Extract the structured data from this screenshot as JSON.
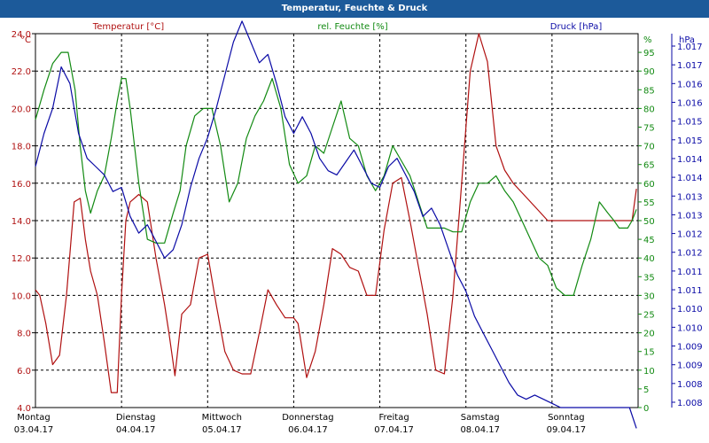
{
  "window": {
    "title": "Temperatur, Feuchte & Druck"
  },
  "chart_data": {
    "type": "line",
    "colors": {
      "temperature": "#b01010",
      "humidity": "#128a12",
      "pressure": "#0a0aa6",
      "grid": "#000000"
    },
    "x_ticks": [
      {
        "day": "Montag",
        "date": "03.04.17"
      },
      {
        "day": "Dienstag",
        "date": "04.04.17"
      },
      {
        "day": "Mittwoch",
        "date": "05.04.17"
      },
      {
        "day": "Donnerstag",
        "date": "06.04.17"
      },
      {
        "day": "Freitag",
        "date": "07.04.17"
      },
      {
        "day": "Samstag",
        "date": "08.04.17"
      },
      {
        "day": "Sonntag",
        "date": "09.04.17"
      }
    ],
    "axes": {
      "left": {
        "unit": "°C",
        "ylim": [
          4,
          24
        ],
        "ticks": [
          "24.0",
          "22.0",
          "20.0",
          "18.0",
          "16.0",
          "14.0",
          "12.0",
          "10.0",
          "8.0",
          "6.0",
          "4.0"
        ]
      },
      "middle": {
        "unit": "%",
        "ylim": [
          0,
          100
        ],
        "ticks": [
          "95",
          "90",
          "85",
          "80",
          "75",
          "70",
          "65",
          "60",
          "55",
          "50",
          "45",
          "40",
          "35",
          "30",
          "25",
          "20",
          "15",
          "10",
          "5",
          "0"
        ]
      },
      "right": {
        "unit": "hPa",
        "ylim": [
          1.008,
          1.017
        ],
        "ticks": [
          "1.017",
          "1.017",
          "1.016",
          "1.016",
          "1.015",
          "1.015",
          "1.014",
          "1.014",
          "1.013",
          "1.013",
          "1.012",
          "1.012",
          "1.011",
          "1.011",
          "1.010",
          "1.010",
          "1.009",
          "1.009",
          "1.008",
          "1.008"
        ]
      }
    },
    "series": [
      {
        "name": "Temperatur [°C]",
        "axis": "left",
        "x": [
          0,
          0.05,
          0.12,
          0.2,
          0.28,
          0.36,
          0.45,
          0.52,
          0.58,
          0.64,
          0.72,
          0.8,
          0.88,
          0.95,
          1.0,
          1.05,
          1.1,
          1.2,
          1.3,
          1.4,
          1.5,
          1.55,
          1.62,
          1.7,
          1.8,
          1.9,
          2.0,
          2.1,
          2.2,
          2.3,
          2.4,
          2.5,
          2.6,
          2.7,
          2.8,
          2.9,
          3.0,
          3.05,
          3.15,
          3.25,
          3.35,
          3.45,
          3.55,
          3.65,
          3.75,
          3.85,
          3.95,
          4.05,
          4.15,
          4.25,
          4.35,
          4.45,
          4.55,
          4.65,
          4.75,
          4.85,
          4.95,
          5.05,
          5.15,
          5.25,
          5.35,
          5.45,
          5.55,
          5.65,
          5.75,
          5.85,
          5.95,
          6.05,
          6.15,
          6.25,
          6.35,
          6.45,
          6.55,
          6.65,
          6.72,
          6.78,
          6.83,
          6.88,
          6.93,
          6.98
        ],
        "values": [
          10.3,
          10.0,
          8.5,
          6.3,
          6.8,
          10.0,
          15.0,
          15.2,
          13.0,
          11.3,
          10.0,
          7.5,
          4.8,
          4.8,
          10.0,
          14.0,
          15.0,
          15.4,
          15.0,
          12.0,
          9.5,
          8.0,
          5.7,
          9.0,
          9.5,
          12.0,
          12.2,
          9.5,
          7.0,
          6.0,
          5.8,
          5.8,
          8.0,
          10.3,
          9.5,
          8.8,
          8.8,
          8.5,
          5.6,
          7.0,
          9.5,
          12.5,
          12.2,
          11.5,
          11.3,
          10.0,
          10.0,
          13.5,
          16.0,
          16.3,
          14.0,
          11.5,
          9.0,
          6.0,
          5.8,
          10.0,
          16.0,
          22.0,
          24.0,
          22.5,
          18.0,
          16.7,
          16.0,
          15.5,
          15.0,
          14.5,
          14.0,
          14.0,
          14.0,
          14.0,
          14.0,
          14.0,
          14.0,
          14.0,
          14.0,
          14.0,
          14.0,
          14.0,
          14.0,
          15.7
        ]
      },
      {
        "name": "rel. Feuchte [%]",
        "axis": "middle",
        "x": [
          0,
          0.1,
          0.2,
          0.3,
          0.38,
          0.46,
          0.52,
          0.58,
          0.64,
          0.72,
          0.8,
          0.88,
          0.95,
          1.0,
          1.05,
          1.1,
          1.2,
          1.3,
          1.4,
          1.5,
          1.6,
          1.68,
          1.75,
          1.85,
          1.95,
          2.05,
          2.15,
          2.25,
          2.35,
          2.45,
          2.55,
          2.65,
          2.75,
          2.85,
          2.95,
          3.05,
          3.15,
          3.25,
          3.35,
          3.45,
          3.55,
          3.65,
          3.75,
          3.85,
          3.95,
          4.05,
          4.15,
          4.25,
          4.35,
          4.45,
          4.55,
          4.65,
          4.75,
          4.85,
          4.95,
          5.05,
          5.15,
          5.25,
          5.35,
          5.45,
          5.55,
          5.65,
          5.75,
          5.85,
          5.95,
          6.05,
          6.15,
          6.25,
          6.35,
          6.45,
          6.55,
          6.65,
          6.72,
          6.78,
          6.83,
          6.88,
          6.93,
          6.98
        ],
        "values": [
          77,
          85,
          92,
          95,
          95,
          85,
          70,
          58,
          52,
          58,
          62,
          72,
          82,
          88,
          88,
          80,
          60,
          45,
          44,
          44,
          52,
          58,
          70,
          78,
          80,
          80,
          70,
          55,
          60,
          72,
          78,
          82,
          88,
          80,
          65,
          60,
          62,
          70,
          68,
          75,
          82,
          72,
          70,
          62,
          58,
          62,
          70,
          66,
          62,
          55,
          48,
          48,
          48,
          47,
          47,
          55,
          60,
          60,
          62,
          58,
          55,
          50,
          45,
          40,
          38,
          32,
          30,
          30,
          38,
          45,
          55,
          52,
          50,
          48,
          48,
          48,
          50,
          53
        ]
      },
      {
        "name": "Druck [hPa]",
        "axis": "right",
        "x": [
          0,
          0.1,
          0.2,
          0.3,
          0.4,
          0.5,
          0.6,
          0.7,
          0.8,
          0.9,
          1.0,
          1.1,
          1.2,
          1.3,
          1.4,
          1.5,
          1.6,
          1.7,
          1.8,
          1.9,
          2.0,
          2.1,
          2.2,
          2.3,
          2.4,
          2.5,
          2.6,
          2.7,
          2.8,
          2.9,
          3.0,
          3.1,
          3.2,
          3.3,
          3.4,
          3.5,
          3.6,
          3.7,
          3.8,
          3.9,
          4.0,
          4.1,
          4.2,
          4.3,
          4.4,
          4.5,
          4.6,
          4.7,
          4.8,
          4.9,
          5.0,
          5.1,
          5.2,
          5.3,
          5.4,
          5.5,
          5.6,
          5.7,
          5.8,
          5.9,
          6.0,
          6.1,
          6.2,
          6.3,
          6.4,
          6.5,
          6.6,
          6.7,
          6.8,
          6.9,
          6.98
        ],
        "values": [
          1.0138,
          1.0146,
          1.0152,
          1.0162,
          1.0158,
          1.0146,
          1.014,
          1.0138,
          1.0136,
          1.0132,
          1.0133,
          1.0126,
          1.0122,
          1.0124,
          1.012,
          1.0116,
          1.0118,
          1.0124,
          1.0133,
          1.014,
          1.0145,
          1.0152,
          1.016,
          1.0168,
          1.0173,
          1.0168,
          1.0163,
          1.0165,
          1.0158,
          1.015,
          1.0146,
          1.015,
          1.0146,
          1.014,
          1.0137,
          1.0136,
          1.0139,
          1.0142,
          1.0138,
          1.0134,
          1.0133,
          1.0138,
          1.014,
          1.0136,
          1.0132,
          1.0126,
          1.0128,
          1.0124,
          1.0118,
          1.0112,
          1.0108,
          1.0102,
          1.0098,
          1.0094,
          1.009,
          1.0086,
          1.0083,
          1.0082,
          1.0083,
          1.0082,
          1.0081,
          1.008,
          1.008,
          1.008,
          1.008,
          1.008,
          1.008,
          1.008,
          1.008,
          1.008,
          1.0075
        ]
      }
    ]
  }
}
